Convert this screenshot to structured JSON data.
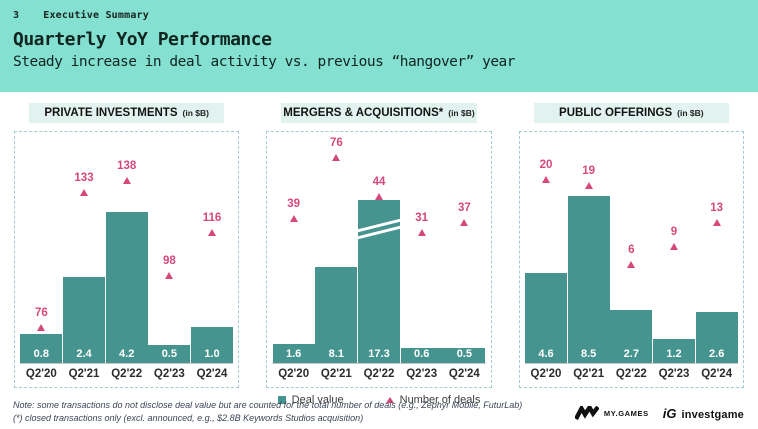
{
  "header": {
    "page_number": "3",
    "section": "Executive Summary",
    "title": "Quarterly YoY Performance",
    "subtitle": "Steady increase in deal activity vs. previous “hangover” year"
  },
  "legend": {
    "deal_value_label": "Deal value",
    "number_of_deals_label": "Number of deals"
  },
  "footnotes": [
    "Note: some transactions do not disclose deal value but are counted for the total number of deals (e.g., Zephyr Mobile, FuturLab)",
    "(*) closed transactions only (excl. announced, e.g., $2.8B Keywords Studios acquisition)"
  ],
  "branding": {
    "mygames_mark_icon": "zigzag-m-logo",
    "mygames_label": "MY.GAMES",
    "investgame_mark": "iG",
    "investgame_label": "investgame"
  },
  "colors": {
    "header_bg": "#84e0d0",
    "title_band_bg": "#e2f3ef",
    "bar_teal": "#45948f",
    "accent_pink": "#d5487c",
    "panel_dashed_border": "#a4cbd2"
  },
  "chart_data": [
    {
      "type": "bar",
      "title": "PRIVATE INVESTMENTS",
      "unit_label": "(in $B)",
      "categories": [
        "Q2'20",
        "Q2'21",
        "Q2'22",
        "Q2'23",
        "Q2'24"
      ],
      "series": [
        {
          "name": "Deal value",
          "unit": "$B",
          "values": [
            0.8,
            2.4,
            4.2,
            0.5,
            1.0
          ]
        },
        {
          "name": "Number of deals",
          "values": [
            76,
            133,
            138,
            98,
            116
          ]
        }
      ],
      "grid": false,
      "legend_position": "bottom-center-shared"
    },
    {
      "type": "bar",
      "title": "MERGERS & ACQUISITIONS*",
      "unit_label": "(in $B)",
      "categories": [
        "Q2'20",
        "Q2'21",
        "Q2'22",
        "Q2'23",
        "Q2'24"
      ],
      "series": [
        {
          "name": "Deal value",
          "unit": "$B",
          "values": [
            1.6,
            8.1,
            17.3,
            0.6,
            0.5
          ]
        },
        {
          "name": "Number of deals",
          "values": [
            39,
            76,
            44,
            31,
            37
          ]
        }
      ],
      "broken_bar_category": "Q2'22",
      "grid": false,
      "legend_position": "bottom-center-shared"
    },
    {
      "type": "bar",
      "title": "PUBLIC OFFERINGS",
      "unit_label": "(in $B)",
      "categories": [
        "Q2'20",
        "Q2'21",
        "Q2'22",
        "Q2'23",
        "Q2'24"
      ],
      "series": [
        {
          "name": "Deal value",
          "unit": "$B",
          "values": [
            4.6,
            8.5,
            2.7,
            1.2,
            2.6
          ]
        },
        {
          "name": "Number of deals",
          "values": [
            20,
            19,
            6,
            9,
            13
          ]
        }
      ],
      "grid": false,
      "legend_position": "bottom-center-shared"
    }
  ]
}
